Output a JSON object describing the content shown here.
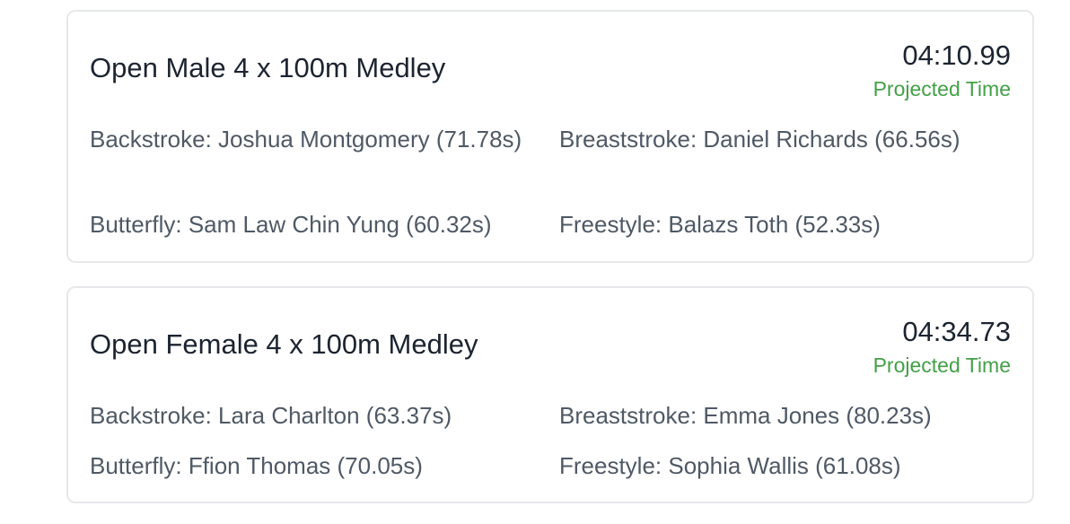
{
  "relays": [
    {
      "title": "Open Male 4 x 100m Medley",
      "time": "04:10.99",
      "time_label": "Projected Time",
      "legs": [
        {
          "text": "Backstroke: Joshua Montgomery (71.78s)"
        },
        {
          "text": "Breaststroke: Daniel Richards (66.56s)"
        },
        {
          "text": "Butterfly: Sam Law Chin Yung (60.32s)"
        },
        {
          "text": "Freestyle: Balazs Toth (52.33s)"
        }
      ]
    },
    {
      "title": "Open Female 4 x 100m Medley",
      "time": "04:34.73",
      "time_label": "Projected Time",
      "legs": [
        {
          "text": "Backstroke: Lara Charlton (63.37s)"
        },
        {
          "text": "Breaststroke: Emma Jones (80.23s)"
        },
        {
          "text": "Butterfly: Ffion Thomas (70.05s)"
        },
        {
          "text": "Freestyle: Sophia Wallis (61.08s)"
        }
      ]
    }
  ],
  "colors": {
    "projected_label": "#43a047",
    "card_border": "#e6e8eb"
  }
}
